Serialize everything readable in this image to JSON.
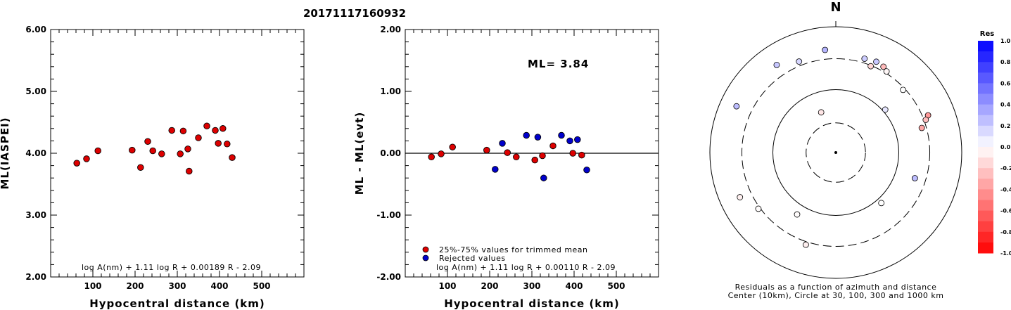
{
  "title": "20171117160932",
  "chart_data": [
    {
      "type": "scatter",
      "xlabel": "Hypocentral distance (km)",
      "ylabel": "ML(IASPEI)",
      "xlim": [
        0,
        600
      ],
      "ylim": [
        2.0,
        6.0
      ],
      "xticks": [
        "100",
        "200",
        "300",
        "400",
        "500"
      ],
      "yticks": [
        "2.00",
        "3.00",
        "4.00",
        "5.00",
        "6.00"
      ],
      "formula": "log A(nm) + 1.11 log R + 0.00189 R - 2.09",
      "points": [
        {
          "x": 62,
          "y": 3.84
        },
        {
          "x": 85,
          "y": 3.91
        },
        {
          "x": 112,
          "y": 4.04
        },
        {
          "x": 193,
          "y": 4.05
        },
        {
          "x": 213,
          "y": 3.77
        },
        {
          "x": 230,
          "y": 4.19
        },
        {
          "x": 242,
          "y": 4.04
        },
        {
          "x": 263,
          "y": 3.99
        },
        {
          "x": 287,
          "y": 4.37
        },
        {
          "x": 307,
          "y": 3.99
        },
        {
          "x": 314,
          "y": 4.36
        },
        {
          "x": 325,
          "y": 4.07
        },
        {
          "x": 328,
          "y": 3.71
        },
        {
          "x": 350,
          "y": 4.25
        },
        {
          "x": 370,
          "y": 4.44
        },
        {
          "x": 390,
          "y": 4.37
        },
        {
          "x": 397,
          "y": 4.16
        },
        {
          "x": 408,
          "y": 4.4
        },
        {
          "x": 418,
          "y": 4.15
        },
        {
          "x": 430,
          "y": 3.93
        }
      ]
    },
    {
      "type": "scatter",
      "xlabel": "Hypocentral distance (km)",
      "ylabel": "ML - ML(evt)",
      "xlim": [
        0,
        600
      ],
      "ylim": [
        -2.0,
        2.0
      ],
      "xticks": [
        "100",
        "200",
        "300",
        "400",
        "500"
      ],
      "yticks": [
        "-2.00",
        "-1.00",
        "0.00",
        "1.00",
        "2.00"
      ],
      "ml_label": "ML= 3.84",
      "formula": "log A(nm) + 1.11 log R + 0.00110 R - 2.09",
      "legend": [
        {
          "label": "25%-75% values for trimmed mean",
          "color": "#dd0000"
        },
        {
          "label": "Rejected values",
          "color": "#0000cc"
        }
      ],
      "series": [
        {
          "name": "25%-75% values for trimmed mean",
          "color": "#dd0000",
          "points": [
            {
              "x": 62,
              "y": -0.06
            },
            {
              "x": 85,
              "y": -0.01
            },
            {
              "x": 112,
              "y": 0.1
            },
            {
              "x": 193,
              "y": 0.05
            },
            {
              "x": 242,
              "y": 0.01
            },
            {
              "x": 263,
              "y": -0.06
            },
            {
              "x": 307,
              "y": -0.11
            },
            {
              "x": 325,
              "y": -0.04
            },
            {
              "x": 350,
              "y": 0.12
            },
            {
              "x": 397,
              "y": 0.0
            },
            {
              "x": 418,
              "y": -0.03
            }
          ]
        },
        {
          "name": "Rejected values",
          "color": "#0000cc",
          "points": [
            {
              "x": 213,
              "y": -0.26
            },
            {
              "x": 230,
              "y": 0.16
            },
            {
              "x": 287,
              "y": 0.29
            },
            {
              "x": 314,
              "y": 0.26
            },
            {
              "x": 328,
              "y": -0.4
            },
            {
              "x": 370,
              "y": 0.29
            },
            {
              "x": 390,
              "y": 0.2
            },
            {
              "x": 408,
              "y": 0.22
            },
            {
              "x": 430,
              "y": -0.27
            }
          ]
        }
      ]
    },
    {
      "type": "scatter",
      "subtype": "polar",
      "north_label": "N",
      "caption_line1": "Residuals as a function of azimuth and distance",
      "caption_line2": "Center (10km), Circle at 30, 100, 300 and 1000 km",
      "rings_km": [
        30,
        100,
        300,
        1000
      ],
      "colorbar": {
        "title": "Res",
        "ticks": [
          "1.0",
          "0.8",
          "0.6",
          "0.4",
          "0.2",
          "0.0",
          "-0.2",
          "-0.4",
          "-0.6",
          "-0.8",
          "-1.0"
        ],
        "min": -1.0,
        "max": 1.0
      },
      "points": [
        {
          "azimuth": 295,
          "radius": 0.87,
          "res": 0.26
        },
        {
          "azimuth": 326,
          "radius": 0.84,
          "res": 0.22
        },
        {
          "azimuth": 338,
          "radius": 0.78,
          "res": 0.16
        },
        {
          "azimuth": 354,
          "radius": 0.82,
          "res": 0.29
        },
        {
          "azimuth": 17,
          "radius": 0.78,
          "res": 0.2
        },
        {
          "azimuth": 22,
          "radius": 0.74,
          "res": -0.16
        },
        {
          "azimuth": 24,
          "radius": 0.79,
          "res": 0.22
        },
        {
          "azimuth": 29,
          "radius": 0.78,
          "res": -0.27
        },
        {
          "azimuth": 32,
          "radius": 0.76,
          "res": -0.03
        },
        {
          "azimuth": 47,
          "radius": 0.73,
          "res": 0.0
        },
        {
          "azimuth": 49,
          "radius": 0.52,
          "res": 0.1
        },
        {
          "azimuth": 68,
          "radius": 0.79,
          "res": -0.4
        },
        {
          "azimuth": 70,
          "radius": 0.76,
          "res": -0.26
        },
        {
          "azimuth": 74,
          "radius": 0.71,
          "res": -0.35
        },
        {
          "azimuth": 108,
          "radius": 0.66,
          "res": 0.26
        },
        {
          "azimuth": 138,
          "radius": 0.54,
          "res": 0.0
        },
        {
          "azimuth": 198,
          "radius": 0.77,
          "res": -0.06
        },
        {
          "azimuth": 212,
          "radius": 0.58,
          "res": -0.01
        },
        {
          "azimuth": 234,
          "radius": 0.76,
          "res": -0.01
        },
        {
          "azimuth": 245,
          "radius": 0.84,
          "res": -0.06
        },
        {
          "azimuth": 340,
          "radius": 0.34,
          "res": -0.1
        }
      ]
    }
  ]
}
